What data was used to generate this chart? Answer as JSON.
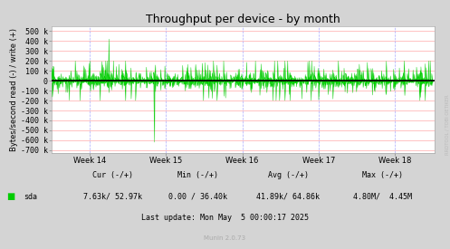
{
  "title": "Throughput per device - by month",
  "ylabel": "Bytes/second read (-) / write (+)",
  "xlabel_ticks": [
    "Week 14",
    "Week 15",
    "Week 16",
    "Week 17",
    "Week 18"
  ],
  "yticks": [
    500000,
    400000,
    300000,
    200000,
    100000,
    0,
    -100000,
    -200000,
    -300000,
    -400000,
    -500000,
    -600000,
    -700000
  ],
  "ytick_labels": [
    "500 k",
    "400 k",
    "300 k",
    "200 k",
    "100 k",
    "0",
    "-100 k",
    "-200 k",
    "-300 k",
    "-400 k",
    "-500 k",
    "-600 k",
    "-700 k"
  ],
  "ylim": [
    -730000,
    550000
  ],
  "xlim_weeks": [
    13.5,
    18.52
  ],
  "line_color": "#00cc00",
  "fig_bg_color": "#d4d4d4",
  "plot_bg_color": "#ffffff",
  "grid_color_h": "#ffaaaa",
  "grid_color_v": "#aaaaff",
  "zero_line_color": "#000000",
  "legend_label": "sda",
  "legend_color": "#00cc00",
  "cur_text": "Cur (-/+)",
  "cur_val": "7.63k/ 52.97k",
  "min_text": "Min (-/+)",
  "min_val": "0.00 / 36.40k",
  "avg_text": "Avg (-/+)",
  "avg_val": "41.89k/ 64.86k",
  "max_text": "Max (-/+)",
  "max_val": "4.80M/  4.45M",
  "last_update": "Last update: Mon May  5 00:00:17 2025",
  "munin_text": "Munin 2.0.73",
  "rrdtool_text": "RRDTOOL / TOBI OETIKER",
  "title_fontsize": 9,
  "axis_fontsize": 6,
  "tick_fontsize": 6,
  "legend_fontsize": 6
}
